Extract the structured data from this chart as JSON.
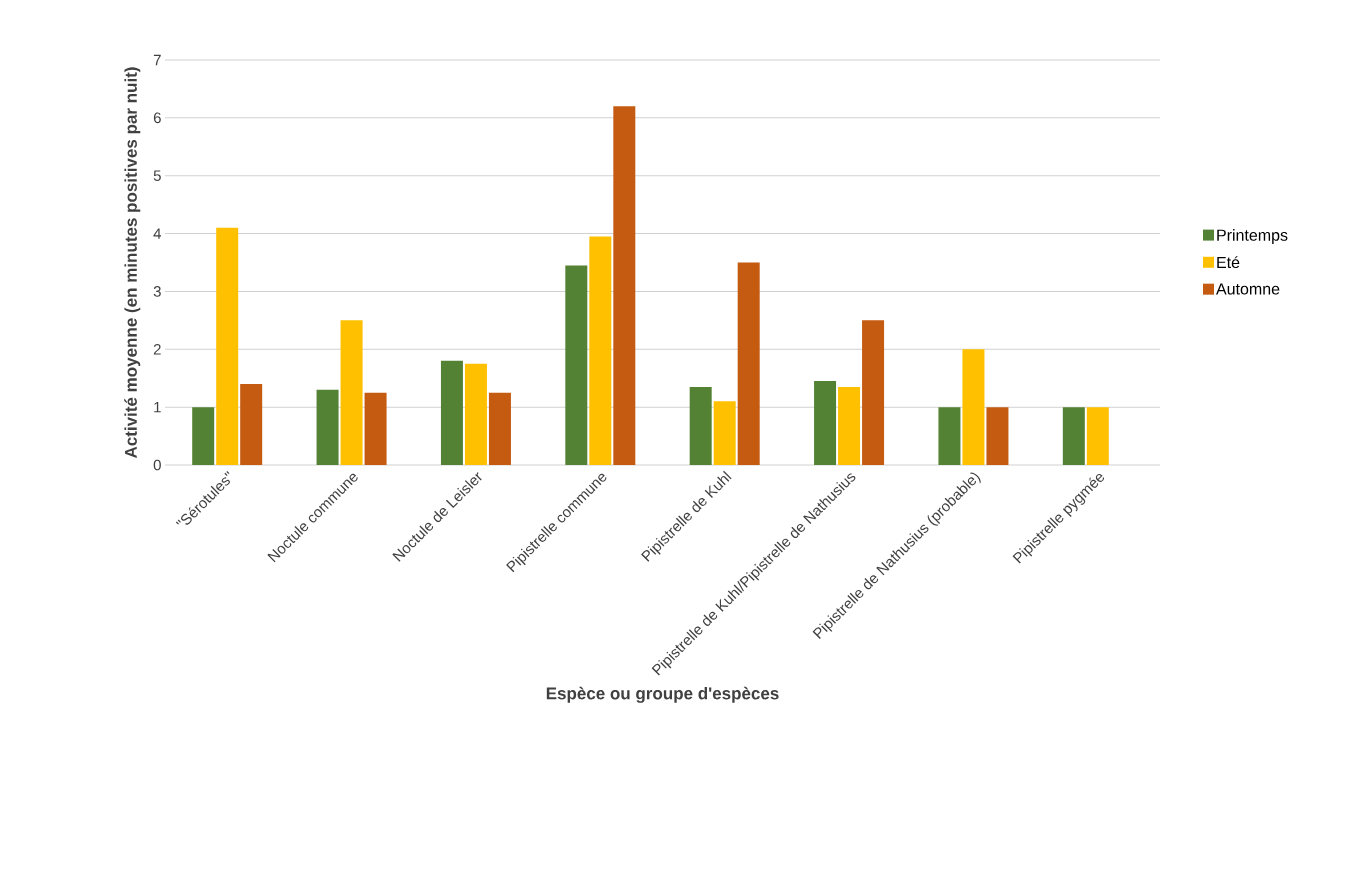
{
  "chart_data": {
    "type": "bar",
    "xlabel": "Espèce ou groupe d'espèces",
    "ylabel": "Activité moyenne (en minutes positives par nuit)",
    "categories": [
      "\"Sérotules\"",
      "Noctule commune",
      "Noctule de Leisler",
      "Pipistrelle commune",
      "Pipistrelle de Kuhl",
      "Pipistrelle de Kuhl/Pipistrelle de Nathusius",
      "Pipistrelle de Nathusius (probable)",
      "Pipistrelle pygmée"
    ],
    "series": [
      {
        "name": "Printemps",
        "color": "#548235",
        "values": [
          1.0,
          1.3,
          1.8,
          3.45,
          1.35,
          1.45,
          1.0,
          1.0
        ]
      },
      {
        "name": "Eté",
        "color": "#ffc000",
        "values": [
          4.1,
          2.5,
          1.75,
          3.95,
          1.1,
          1.35,
          2.0,
          1.0
        ]
      },
      {
        "name": "Automne",
        "color": "#c55a11",
        "values": [
          1.4,
          1.25,
          1.25,
          6.2,
          3.5,
          2.5,
          1.0,
          0.0
        ]
      }
    ],
    "ylim": [
      0,
      7
    ],
    "yticks": [
      0,
      1,
      2,
      3,
      4,
      5,
      6,
      7
    ],
    "grid": "y",
    "legend": "right"
  }
}
